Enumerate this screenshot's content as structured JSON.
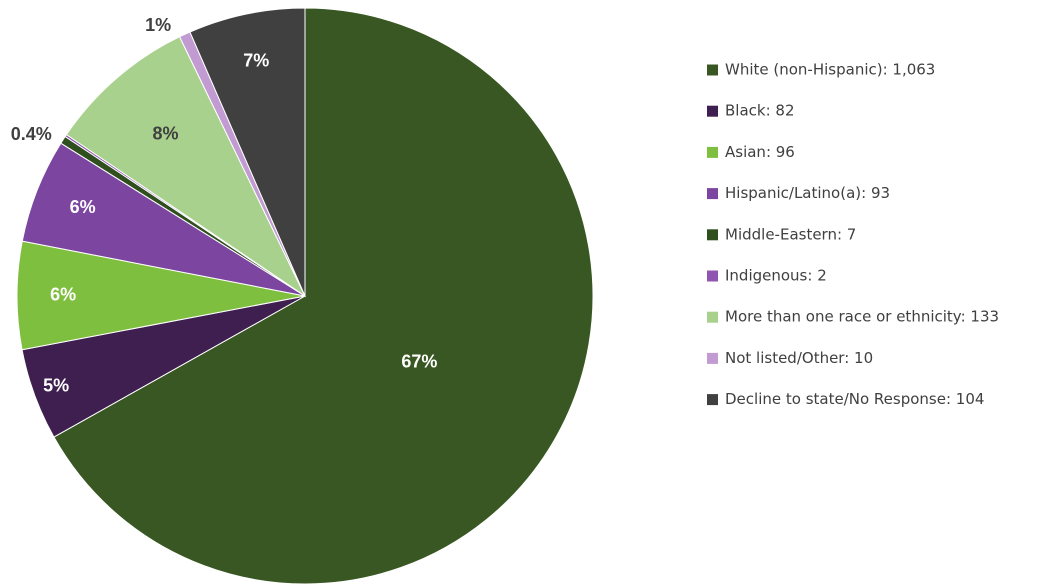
{
  "chart_data": {
    "type": "pie",
    "title": "",
    "legend_position": "right",
    "slices": [
      {
        "name": "White (non-Hispanic)",
        "value": 1063,
        "legend_label": "White (non-Hispanic): 1,063",
        "percent_label": "67%",
        "color": "#385723"
      },
      {
        "name": "Black",
        "value": 82,
        "legend_label": "Black: 82",
        "percent_label": "5%",
        "color": "#3f1f4f"
      },
      {
        "name": "Asian",
        "value": 96,
        "legend_label": "Asian: 96",
        "percent_label": "6%",
        "color": "#7fbf3f"
      },
      {
        "name": "Hispanic/Latino(a)",
        "value": 93,
        "legend_label": "Hispanic/Latino(a): 93",
        "percent_label": "6%",
        "color": "#7b45a0"
      },
      {
        "name": "Middle-Eastern",
        "value": 7,
        "legend_label": "Middle-Eastern: 7",
        "percent_label": "0.4%",
        "color": "#2f4f1f"
      },
      {
        "name": "Indigenous",
        "value": 2,
        "legend_label": "Indigenous: 2",
        "percent_label": "",
        "color": "#8f55b0"
      },
      {
        "name": "More than one race or ethnicity",
        "value": 133,
        "legend_label": "More than one race or ethnicity: 133",
        "percent_label": "8%",
        "color": "#a9d18e"
      },
      {
        "name": "Not listed/Other",
        "value": 10,
        "legend_label": "Not listed/Other: 10",
        "percent_label": "1%",
        "color": "#c39bd3"
      },
      {
        "name": "Decline to state/No Response",
        "value": 104,
        "legend_label": "Decline to state/No Response: 104",
        "percent_label": "7%",
        "color": "#404040"
      }
    ]
  }
}
